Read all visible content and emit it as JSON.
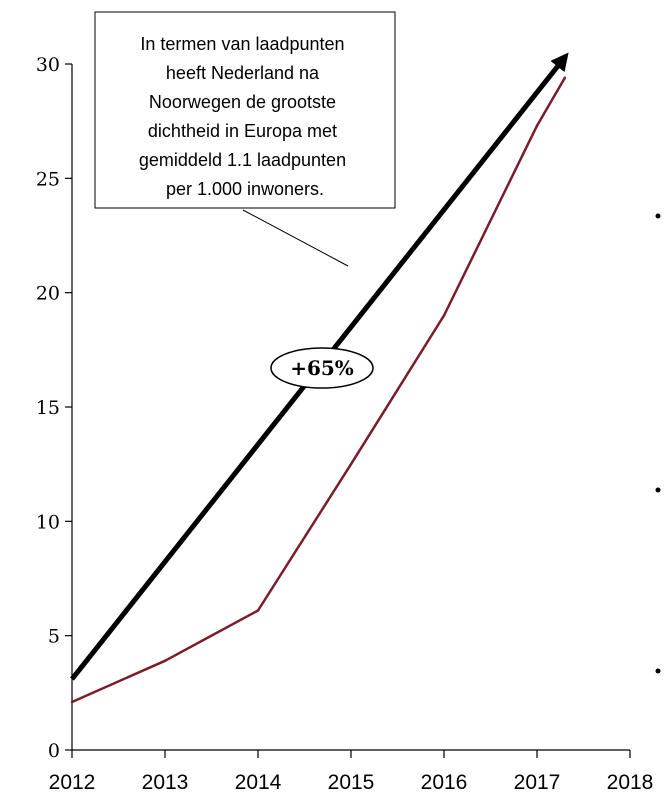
{
  "chart_data": {
    "type": "line",
    "x": [
      2012,
      2013,
      2014,
      2015,
      2016,
      2017,
      2017.3
    ],
    "series": [
      {
        "values": [
          2.1,
          3.9,
          6.1,
          12.5,
          19.0,
          27.3,
          29.4
        ],
        "color": "#7b1c2a"
      }
    ],
    "xlim": [
      2012,
      2018
    ],
    "ylim": [
      0,
      30
    ],
    "x_ticks": [
      "2012",
      "2013",
      "2014",
      "2015",
      "2016",
      "2017",
      "2018"
    ],
    "y_ticks": [
      "0",
      "5",
      "10",
      "15",
      "20",
      "25",
      "30"
    ],
    "trend_arrow": {
      "from": [
        2012,
        3.1
      ],
      "to": [
        2017.3,
        30.3
      ],
      "color": "#000000"
    },
    "growth_badge": "+65%",
    "annotation": {
      "lines": [
        "In termen van laadpunten",
        "heeft Nederland na",
        "Noorwegen de grootste",
        "dichtheid in Europa met",
        "gemiddeld 1.1 laadpunten",
        "per 1.000 inwoners."
      ]
    },
    "grid": false,
    "legend": "none"
  }
}
